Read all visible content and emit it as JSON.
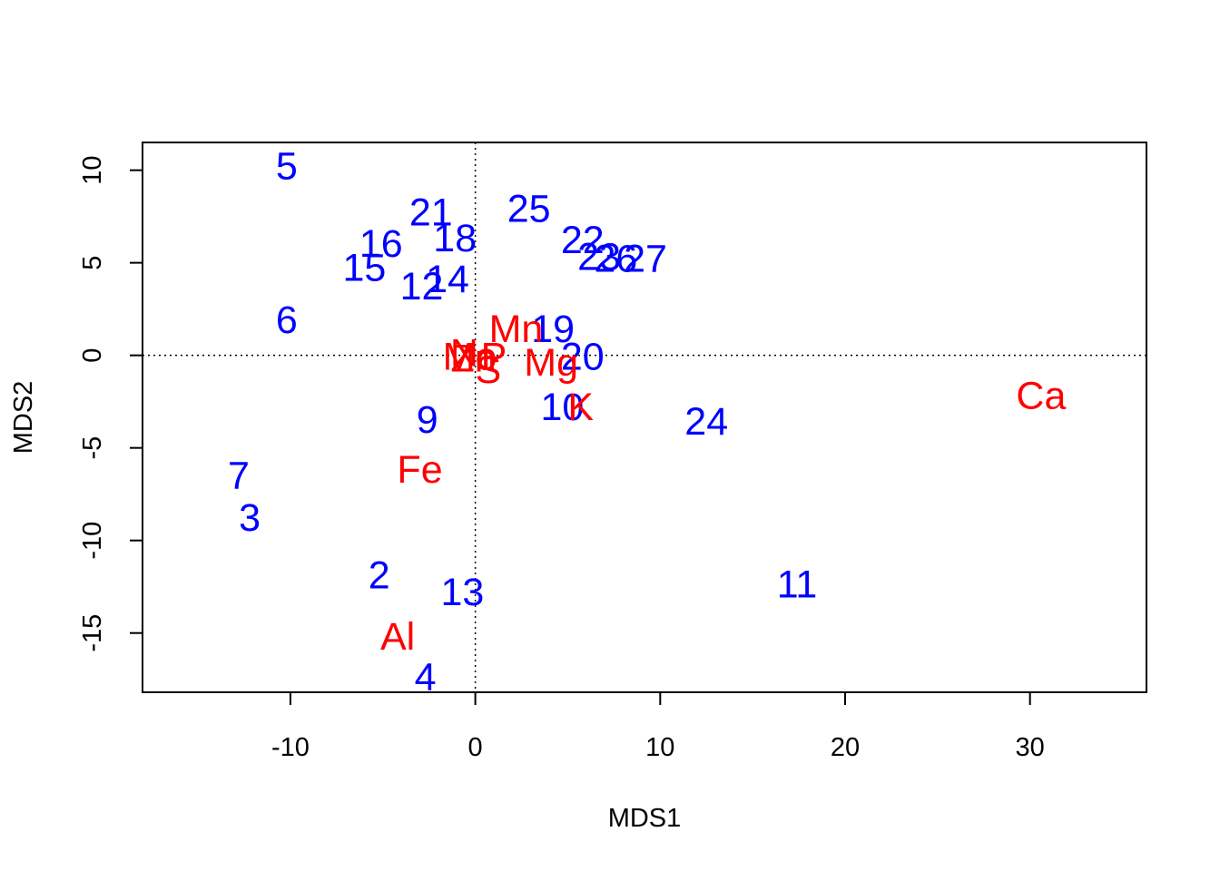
{
  "chart_data": {
    "type": "scatter",
    "title": "",
    "xlabel": "MDS1",
    "ylabel": "MDS2",
    "xlim": [
      -18,
      36.3
    ],
    "ylim": [
      -18.2,
      11.5
    ],
    "xticks": [
      -10,
      0,
      10,
      20,
      30
    ],
    "yticks": [
      -15,
      -10,
      -5,
      0,
      5,
      10
    ],
    "reference_lines": {
      "x": 0,
      "y": 0,
      "style": "dotted"
    },
    "colors": {
      "sites": "#0000ff",
      "species": "#ff0000"
    },
    "series": [
      {
        "name": "sites",
        "points": [
          {
            "label": "2",
            "x": -5.2,
            "y": -11.9
          },
          {
            "label": "3",
            "x": -12.2,
            "y": -8.8
          },
          {
            "label": "4",
            "x": -2.7,
            "y": -17.4
          },
          {
            "label": "5",
            "x": -10.2,
            "y": 10.2
          },
          {
            "label": "6",
            "x": -10.2,
            "y": 1.9
          },
          {
            "label": "7",
            "x": -12.8,
            "y": -6.5
          },
          {
            "label": "9",
            "x": -2.6,
            "y": -3.5
          },
          {
            "label": "10",
            "x": 4.7,
            "y": -2.8
          },
          {
            "label": "11",
            "x": 17.4,
            "y": -12.4
          },
          {
            "label": "12",
            "x": -2.9,
            "y": 3.7
          },
          {
            "label": "13",
            "x": -0.7,
            "y": -12.8
          },
          {
            "label": "14",
            "x": -1.5,
            "y": 4.1
          },
          {
            "label": "15",
            "x": -6.0,
            "y": 4.7
          },
          {
            "label": "16",
            "x": -5.1,
            "y": 6.0
          },
          {
            "label": "18",
            "x": -1.1,
            "y": 6.3
          },
          {
            "label": "19",
            "x": 4.2,
            "y": 1.4
          },
          {
            "label": "20",
            "x": 5.8,
            "y": -0.1
          },
          {
            "label": "21",
            "x": -2.4,
            "y": 7.7
          },
          {
            "label": "22",
            "x": 5.8,
            "y": 6.2
          },
          {
            "label": "23",
            "x": 6.7,
            "y": 5.3
          },
          {
            "label": "24",
            "x": 12.5,
            "y": -3.6
          },
          {
            "label": "25",
            "x": 2.9,
            "y": 7.9
          },
          {
            "label": "26",
            "x": 7.6,
            "y": 5.2
          },
          {
            "label": "27",
            "x": 9.2,
            "y": 5.2
          }
        ]
      },
      {
        "name": "species",
        "points": [
          {
            "label": "N",
            "x": -0.6,
            "y": 0.1
          },
          {
            "label": "Mo",
            "x": -0.3,
            "y": -0.1
          },
          {
            "label": "Zn",
            "x": -0.1,
            "y": -0.2
          },
          {
            "label": "P",
            "x": 1.0,
            "y": -0.1
          },
          {
            "label": "S",
            "x": 0.7,
            "y": -0.8
          },
          {
            "label": "Mn",
            "x": 2.2,
            "y": 1.4
          },
          {
            "label": "Mg",
            "x": 4.1,
            "y": -0.4
          },
          {
            "label": "K",
            "x": 5.7,
            "y": -2.8
          },
          {
            "label": "Ca",
            "x": 30.6,
            "y": -2.2
          },
          {
            "label": "Fe",
            "x": -3.0,
            "y": -6.2
          },
          {
            "label": "Al",
            "x": -4.2,
            "y": -15.2
          }
        ]
      }
    ]
  }
}
